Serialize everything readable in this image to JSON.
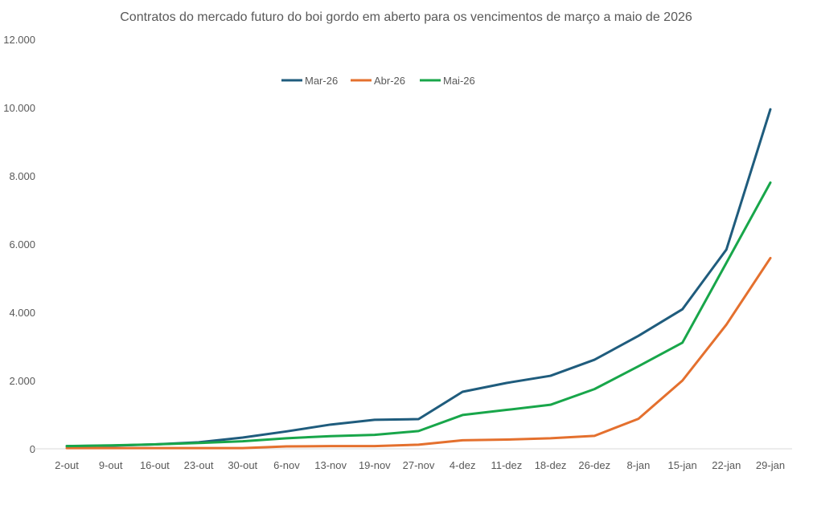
{
  "chart_data": {
    "type": "line",
    "title": "Contratos do mercado futuro do boi gordo em aberto para os vencimentos de março a maio de 2026",
    "xlabel": "",
    "ylabel": "",
    "categories": [
      "2-out",
      "9-out",
      "16-out",
      "23-out",
      "30-out",
      "6-nov",
      "13-nov",
      "19-nov",
      "27-nov",
      "4-dez",
      "11-dez",
      "18-dez",
      "26-dez",
      "8-jan",
      "15-jan",
      "22-jan",
      "29-jan"
    ],
    "ylim": [
      0,
      12000
    ],
    "yticks": [
      0,
      2000,
      4000,
      6000,
      8000,
      10000,
      12000
    ],
    "ytick_labels": [
      "0",
      "2.000",
      "4.000",
      "6.000",
      "8.000",
      "10.000",
      "12.000"
    ],
    "grid": false,
    "legend_position": "top-left",
    "series": [
      {
        "name": "Mar-26",
        "color": "#1f5c7d",
        "values": [
          80,
          90,
          130,
          190,
          330,
          510,
          710,
          850,
          870,
          1670,
          1930,
          2140,
          2610,
          3310,
          4090,
          5840,
          9950
        ]
      },
      {
        "name": "Abr-26",
        "color": "#e4702e",
        "values": [
          20,
          20,
          20,
          20,
          20,
          70,
          80,
          80,
          120,
          250,
          270,
          310,
          380,
          880,
          2000,
          3640,
          5590
        ]
      },
      {
        "name": "Mai-26",
        "color": "#18a64a",
        "values": [
          80,
          100,
          130,
          170,
          220,
          310,
          370,
          410,
          520,
          990,
          1140,
          1290,
          1750,
          2420,
          3110,
          5450,
          7800
        ]
      }
    ]
  }
}
